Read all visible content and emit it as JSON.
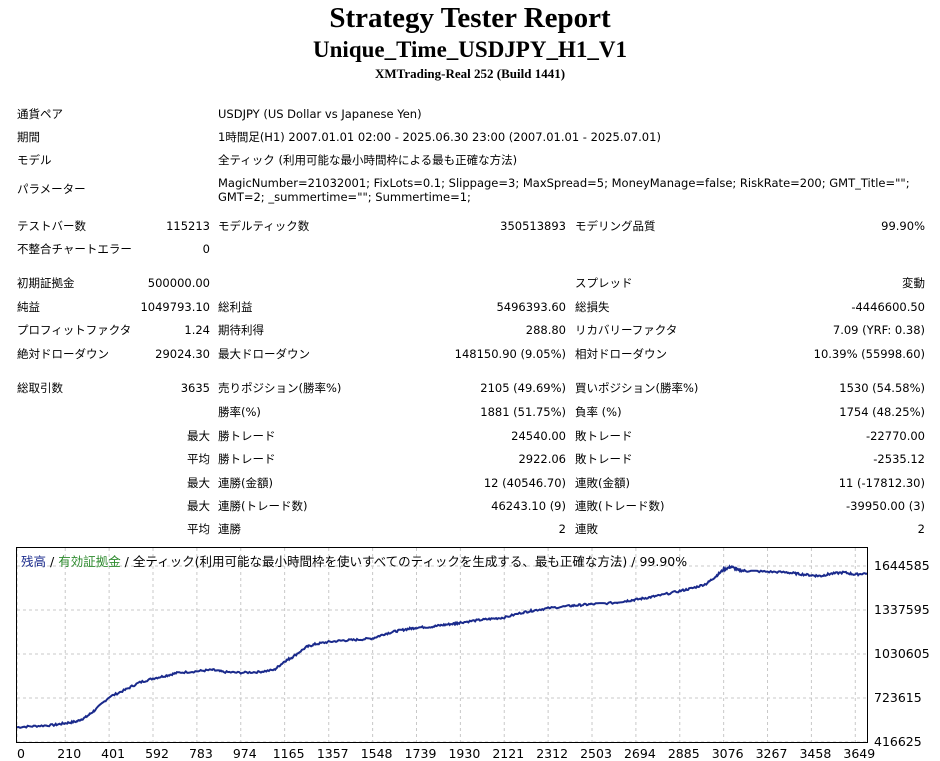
{
  "header": {
    "title": "Strategy Tester Report",
    "subtitle": "Unique_Time_USDJPY_H1_V1",
    "server": "XMTrading-Real 252 (Build 1441)"
  },
  "info": {
    "symbol_label": "通貨ペア",
    "symbol_value": "USDJPY (US Dollar vs Japanese Yen)",
    "period_label": "期間",
    "period_value": "1時間足(H1) 2007.01.01 02:00 - 2025.06.30 23:00 (2007.01.01 - 2025.07.01)",
    "model_label": "モデル",
    "model_value": "全ティック (利用可能な最小時間枠による最も正確な方法)",
    "params_label": "パラメーター",
    "params_value": "MagicNumber=21032001; FixLots=0.1; Slippage=3; MaxSpread=5; MoneyManage=false; RiskRate=200; GMT_Title=\"\"; GMT=2; _summertime=\"\"; Summertime=1;"
  },
  "stats": {
    "bars_label": "テストバー数",
    "bars_value": "115213",
    "ticks_label": "モデルティック数",
    "ticks_value": "350513893",
    "quality_label": "モデリング品質",
    "quality_value": "99.90%",
    "mismatch_label": "不整合チャートエラー",
    "mismatch_value": "0",
    "deposit_label": "初期証拠金",
    "deposit_value": "500000.00",
    "spread_label": "スプレッド",
    "spread_value": "変動",
    "net_label": "純益",
    "net_value": "1049793.10",
    "gross_profit_label": "総利益",
    "gross_profit_value": "5496393.60",
    "gross_loss_label": "総損失",
    "gross_loss_value": "-4446600.50",
    "pf_label": "プロフィットファクタ",
    "pf_value": "1.24",
    "expected_label": "期待利得",
    "expected_value": "288.80",
    "recovery_label": "リカバリーファクタ",
    "recovery_value": "7.09 (YRF: 0.38)",
    "abs_dd_label": "絶対ドローダウン",
    "abs_dd_value": "29024.30",
    "max_dd_label": "最大ドローダウン",
    "max_dd_value": "148150.90 (9.05%)",
    "rel_dd_label": "相対ドローダウン",
    "rel_dd_value": "10.39% (55998.60)",
    "total_trades_label": "総取引数",
    "total_trades_value": "3635",
    "short_label": "売りポジション(勝率%)",
    "short_value": "2105 (49.69%)",
    "long_label": "買いポジション(勝率%)",
    "long_value": "1530 (54.58%)",
    "win_rate_label": "勝率(%)",
    "win_rate_value": "1881 (51.75%)",
    "loss_rate_label": "負率 (%)",
    "loss_rate_value": "1754 (48.25%)",
    "max_label": "最大",
    "avg_label": "平均",
    "largest_win_label": "勝トレード",
    "largest_win_value": "24540.00",
    "largest_loss_label": "敗トレード",
    "largest_loss_value": "-22770.00",
    "avg_win_label": "勝トレード",
    "avg_win_value": "2922.06",
    "avg_loss_label": "敗トレード",
    "avg_loss_value": "-2535.12",
    "max_consec_win_amt_label": "連勝(金額)",
    "max_consec_win_amt_value": "12 (40546.70)",
    "max_consec_loss_amt_label": "連敗(金額)",
    "max_consec_loss_amt_value": "11 (-17812.30)",
    "max_consec_win_cnt_label": "連勝(トレード数)",
    "max_consec_win_cnt_value": "46243.10 (9)",
    "max_consec_loss_cnt_label": "連敗(トレード数)",
    "max_consec_loss_cnt_value": "-39950.00 (3)",
    "avg_consec_win_label": "連勝",
    "avg_consec_win_value": "2",
    "avg_consec_loss_label": "連敗",
    "avg_consec_loss_value": "2"
  },
  "chart_data": {
    "type": "line",
    "legend": {
      "balance": "残高",
      "sep1": " / ",
      "equity": "有効証拠金",
      "sep2": " / ",
      "model": "全ティック(利用可能な最小時間枠を使いすべてのティックを生成する、最も正確な方法)",
      "sep3": " / ",
      "quality": "99.90%"
    },
    "line_color": "#1a2a8c",
    "y_ticks": [
      "1644585",
      "1337595",
      "1030605",
      "723615",
      "416625"
    ],
    "ylim": [
      416625,
      1644585
    ],
    "x_ticks": [
      "0",
      "210",
      "401",
      "592",
      "783",
      "974",
      "1165",
      "1357",
      "1548",
      "1739",
      "1930",
      "2121",
      "2312",
      "2503",
      "2694",
      "2885",
      "3076",
      "3267",
      "3458",
      "3649"
    ],
    "xlim": [
      0,
      3700
    ],
    "grid": true,
    "series": [
      {
        "x": [
          0,
          80,
          160,
          210,
          260,
          300,
          340,
          401,
          470,
          530,
          592,
          650,
          700,
          783,
          850,
          900,
          974,
          1050,
          1120,
          1165,
          1200,
          1260,
          1300,
          1357,
          1420,
          1480,
          1548,
          1600,
          1650,
          1700,
          1739,
          1800,
          1850,
          1900,
          1930,
          2000,
          2060,
          2121,
          2200,
          2250,
          2312,
          2400,
          2450,
          2503,
          2600,
          2650,
          2694,
          2750,
          2800,
          2885,
          2940,
          3000,
          3040,
          3076,
          3110,
          3140,
          3180,
          3267,
          3350,
          3400,
          3458,
          3500,
          3540,
          3600,
          3649,
          3700
        ],
        "y": [
          520000,
          528000,
          535000,
          548000,
          560000,
          590000,
          640000,
          730000,
          780000,
          830000,
          860000,
          880000,
          900000,
          910000,
          920000,
          905000,
          900000,
          905000,
          920000,
          980000,
          1010000,
          1080000,
          1100000,
          1115000,
          1125000,
          1130000,
          1140000,
          1170000,
          1190000,
          1205000,
          1215000,
          1220000,
          1232000,
          1242000,
          1250000,
          1265000,
          1275000,
          1285000,
          1320000,
          1335000,
          1350000,
          1365000,
          1372000,
          1378000,
          1388000,
          1400000,
          1410000,
          1425000,
          1440000,
          1470000,
          1490000,
          1520000,
          1570000,
          1620000,
          1640000,
          1615000,
          1610000,
          1605000,
          1600000,
          1590000,
          1580000,
          1575000,
          1590000,
          1600000,
          1585000,
          1595000
        ]
      }
    ]
  }
}
